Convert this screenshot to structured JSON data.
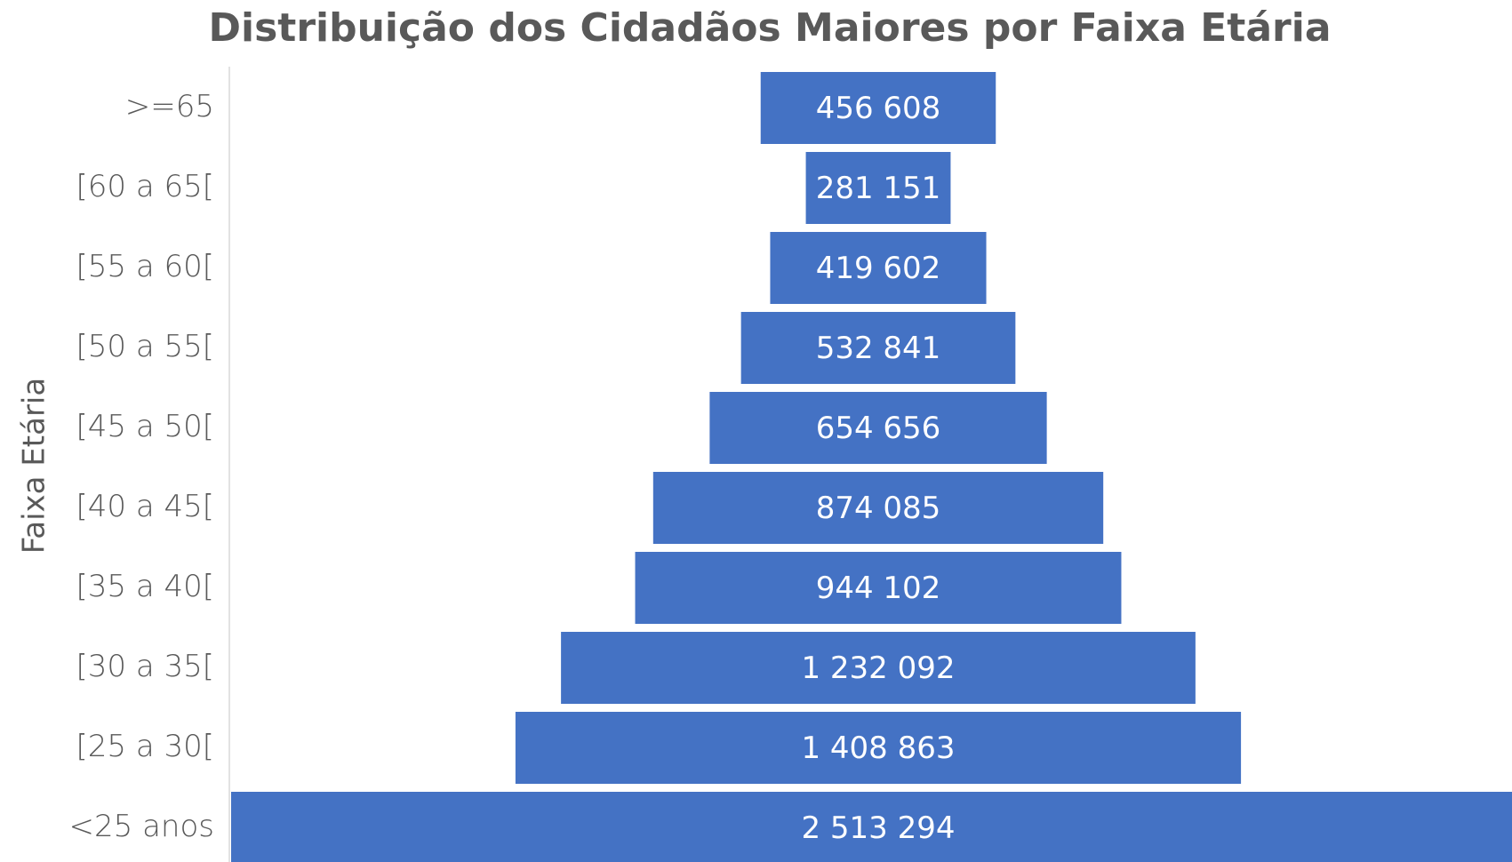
{
  "chart_data": {
    "type": "funnel",
    "title": "Distribuição dos Cidadãos Maiores  por Faixa Etária",
    "y_label": "Faixa Etária",
    "categories": [
      ">=65",
      "[60 a 65[",
      "[55 a 60[",
      "[50 a 55[",
      "[45 a 50[",
      "[40 a 45[",
      "[35 a 40[",
      "[30 a 35[",
      "[25 a 30[",
      "<25 anos"
    ],
    "values": [
      456608,
      281151,
      419602,
      532841,
      654656,
      874085,
      944102,
      1232092,
      1408863,
      2513294
    ],
    "value_labels": [
      "456 608",
      "281 151",
      "419 602",
      "532 841",
      "654 656",
      "874 085",
      "944 102",
      "1 232 092",
      "1 408 863",
      "2 513 294"
    ],
    "color": "#4472c4"
  }
}
